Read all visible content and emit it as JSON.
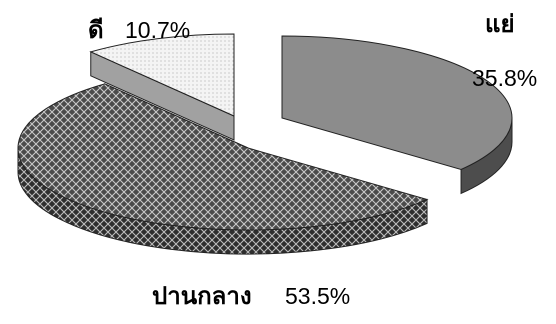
{
  "chart_data": {
    "type": "pie",
    "style": "3d-exploded",
    "title": "",
    "slices": [
      {
        "label": "แย่",
        "value": 35.8,
        "value_label": "35.8%",
        "color": "#8c8c8c",
        "pattern": "solid"
      },
      {
        "label": "ปานกลาง",
        "value": 53.5,
        "value_label": "53.5%",
        "color": "#5a5a5a",
        "pattern": "diamond-mesh"
      },
      {
        "label": "ดี",
        "value": 10.7,
        "value_label": "10.7%",
        "color": "#f2f2f2",
        "pattern": "light-dots"
      }
    ],
    "legend": "none"
  }
}
